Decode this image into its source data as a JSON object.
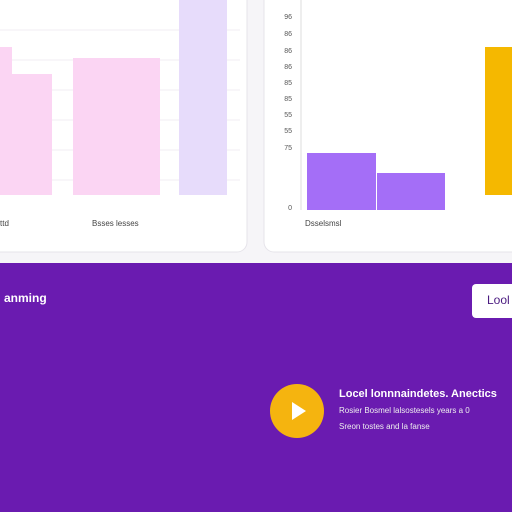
{
  "left_panel": {
    "x_labels": [
      "ttd",
      "Bsses lesses"
    ]
  },
  "right_panel": {
    "y_labels": [
      "96",
      "86",
      "86",
      "86",
      "85",
      "85",
      "55",
      "55",
      "75",
      "0"
    ],
    "x_label": "Dsselsmsl"
  },
  "banner": {
    "heading": "anming",
    "button": "Lool",
    "feature": {
      "title": "Locel lonnnaindetes. Anectics",
      "line1": "Rosier Bosmel lalsostesels years a 0",
      "line2": "Sreon tostes and la fanse"
    }
  }
}
